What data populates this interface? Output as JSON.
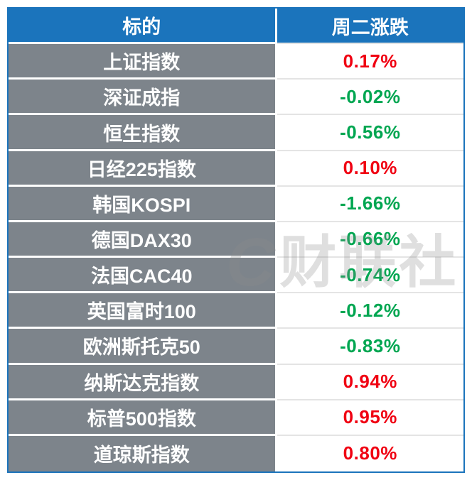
{
  "colors": {
    "header_bg": "#1b74bc",
    "label_bg": "#7d848b",
    "up": "#f00012",
    "down": "#00a651",
    "border_blue": "#1b74bc"
  },
  "watermark": {
    "logo": "C",
    "text": "财联社"
  },
  "chart_data": {
    "type": "table",
    "title": "",
    "columns": [
      "标的",
      "周二涨跌"
    ],
    "rows": [
      {
        "label": "上证指数",
        "value": "0.17%",
        "direction": "up",
        "color": "#f00012"
      },
      {
        "label": "深证成指",
        "value": "-0.02%",
        "direction": "down",
        "color": "#00a651"
      },
      {
        "label": "恒生指数",
        "value": "-0.56%",
        "direction": "down",
        "color": "#00a651"
      },
      {
        "label": "日经225指数",
        "value": "0.10%",
        "direction": "up",
        "color": "#f00012"
      },
      {
        "label": "韩国KOSPI",
        "value": "-1.66%",
        "direction": "down",
        "color": "#00a651"
      },
      {
        "label": "德国DAX30",
        "value": "-0.66%",
        "direction": "down",
        "color": "#00a651"
      },
      {
        "label": "法国CAC40",
        "value": "-0.74%",
        "direction": "down",
        "color": "#00a651"
      },
      {
        "label": "英国富时100",
        "value": "-0.12%",
        "direction": "down",
        "color": "#00a651"
      },
      {
        "label": "欧洲斯托克50",
        "value": "-0.83%",
        "direction": "down",
        "color": "#00a651"
      },
      {
        "label": "纳斯达克指数",
        "value": "0.94%",
        "direction": "up",
        "color": "#f00012"
      },
      {
        "label": "标普500指数",
        "value": "0.95%",
        "direction": "up",
        "color": "#f00012"
      },
      {
        "label": "道琼斯指数",
        "value": "0.80%",
        "direction": "up",
        "color": "#f00012"
      }
    ]
  }
}
